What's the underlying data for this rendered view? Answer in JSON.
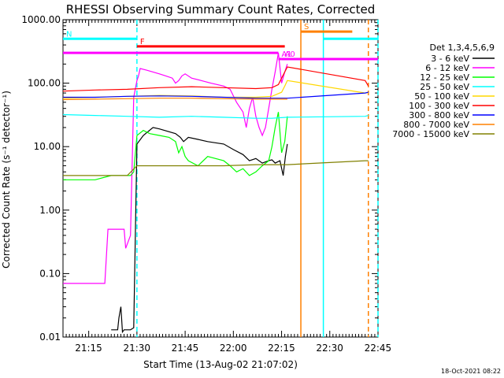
{
  "chart_data": {
    "type": "line",
    "title": "RHESSI Observing Summary Count Rates, Corrected",
    "xlabel": "Start Time (13-Aug-02 21:07:02)",
    "ylabel": "Corrected Count Rate (s⁻¹ detector⁻¹)",
    "y_scale": "log",
    "ylim": [
      0.01,
      1000
    ],
    "y_ticks": [
      0.01,
      0.1,
      1,
      10,
      100,
      1000
    ],
    "y_tick_labels": [
      "0.01",
      "0.10",
      "1.00",
      "10.00",
      "100.00",
      "1000.00"
    ],
    "x_unit": "minutes since 21:07:02",
    "xlim": [
      0,
      98
    ],
    "x_ticks": [
      7.97,
      22.97,
      37.97,
      52.97,
      67.97,
      82.97,
      97.97
    ],
    "x_tick_labels": [
      "21:15",
      "21:30",
      "21:45",
      "22:00",
      "22:15",
      "22:30",
      "22:45"
    ],
    "legend_title": "Det 1,3,4,5,6,9",
    "legend_position": "right",
    "series": [
      {
        "name": "3 - 6 keV",
        "color": "#000000",
        "x": [
          15,
          17,
          17.4,
          18,
          18.5,
          19,
          20,
          21,
          22,
          23,
          25,
          28,
          30,
          35,
          36.5,
          37.5,
          39,
          42,
          45,
          50,
          53,
          56,
          58,
          60,
          62,
          64,
          65,
          66,
          67.5,
          68.5,
          69.2,
          69.8
        ],
        "y": [
          0.013,
          0.013,
          0.02,
          0.03,
          0.012,
          0.013,
          0.013,
          0.013,
          0.014,
          11,
          15,
          20,
          19,
          16,
          14,
          12,
          14,
          13,
          12,
          11,
          9,
          7.5,
          6,
          6.5,
          5.5,
          6,
          6.2,
          5.5,
          6,
          3.5,
          7,
          11
        ]
      },
      {
        "name": "6 - 12 keV",
        "color": "#ff00ff",
        "x": [
          0,
          5,
          10,
          12,
          13,
          14,
          14.5,
          15,
          17,
          19,
          19.5,
          21,
          22,
          23,
          23.5,
          24,
          26,
          28,
          30,
          32,
          34,
          35,
          36,
          37,
          38,
          40,
          43,
          46,
          50,
          52,
          54,
          56,
          57,
          58,
          59,
          60,
          61,
          62,
          63,
          64,
          65,
          66,
          67,
          68,
          69,
          69.8
        ],
        "y": [
          0.07,
          0.07,
          0.07,
          0.07,
          0.07,
          0.5,
          0.5,
          0.5,
          0.5,
          0.5,
          0.25,
          0.4,
          60,
          110,
          130,
          170,
          160,
          150,
          140,
          130,
          120,
          100,
          110,
          130,
          140,
          120,
          110,
          100,
          90,
          80,
          50,
          35,
          20,
          40,
          60,
          30,
          20,
          15,
          20,
          40,
          80,
          150,
          300,
          100,
          150,
          200
        ]
      },
      {
        "name": "12 - 25 keV",
        "color": "#00ff00",
        "x": [
          0,
          5,
          10,
          15,
          20,
          21,
          22,
          23,
          25,
          27,
          30,
          33,
          35,
          36,
          37,
          38,
          39,
          42,
          45,
          50,
          52,
          54,
          56,
          58,
          60,
          62,
          64,
          65,
          66,
          67,
          68,
          69,
          69.8
        ],
        "y": [
          3,
          3,
          3,
          3.5,
          3.5,
          3.5,
          4,
          15,
          18,
          16,
          15,
          14,
          12,
          8,
          10,
          7,
          6,
          5,
          7,
          6,
          5,
          4,
          4.5,
          3.5,
          4,
          5,
          6,
          10,
          20,
          35,
          8,
          12,
          30
        ]
      },
      {
        "name": "25 - 50 keV",
        "color": "#00ffff",
        "x": [
          0,
          10,
          20,
          30,
          40,
          50,
          60,
          65,
          69.8,
          94,
          95
        ],
        "y": [
          32,
          31,
          30,
          29,
          30,
          29,
          28,
          28,
          29,
          30,
          31
        ]
      },
      {
        "name": "50 - 100 keV",
        "color": "#ffd700",
        "x": [
          0,
          10,
          20,
          30,
          40,
          50,
          60,
          65,
          68,
          69,
          69.8,
          94,
          95
        ],
        "y": [
          58,
          60,
          62,
          64,
          63,
          60,
          60,
          62,
          72,
          90,
          110,
          70,
          71
        ]
      },
      {
        "name": "100 - 300 keV",
        "color": "#ff0000",
        "x": [
          0,
          10,
          20,
          30,
          40,
          50,
          60,
          65,
          67,
          68,
          69,
          69.8,
          94,
          95
        ],
        "y": [
          75,
          78,
          80,
          85,
          88,
          85,
          82,
          85,
          95,
          120,
          150,
          180,
          110,
          90
        ]
      },
      {
        "name": "300 - 800 keV",
        "color": "#0000ff",
        "x": [
          0,
          10,
          20,
          30,
          40,
          50,
          60,
          65,
          69.8,
          94,
          95
        ],
        "y": [
          60,
          60,
          62,
          63,
          62,
          60,
          58,
          58,
          58,
          70,
          72
        ]
      },
      {
        "name": "800 - 7000 keV",
        "color": "#ff8000",
        "x": [
          0,
          10,
          20,
          30,
          40,
          50,
          60,
          65,
          69.8
        ],
        "y": [
          55,
          56,
          57,
          58,
          58,
          57,
          56,
          56,
          56
        ]
      },
      {
        "name": "7000 - 15000 keV",
        "color": "#808000",
        "x": [
          0,
          10,
          20,
          23,
          30,
          40,
          50,
          60,
          65,
          69.8,
          94,
          95
        ],
        "y": [
          3.5,
          3.5,
          3.5,
          5,
          5,
          5,
          5,
          5.2,
          5.2,
          5.2,
          6,
          6
        ]
      }
    ],
    "annotations": [
      {
        "label": "N",
        "color": "#00ffff",
        "x_start": 0,
        "x_end": 23,
        "y": 500
      },
      {
        "label": "F",
        "color": "#ff0000",
        "x_start": 23,
        "x_end": 69,
        "y": 380
      },
      {
        "label": "",
        "color": "#ff00ff",
        "x_start": 0,
        "x_end": 67,
        "y": 300
      },
      {
        "label": "A1",
        "color": "#ff00ff",
        "x_start": 67,
        "x_end": 68,
        "y": 240
      },
      {
        "label": "A0",
        "color": "#ff00ff",
        "x_start": 68,
        "x_end": 98,
        "y": 240
      },
      {
        "label": "S",
        "color": "#ff8000",
        "x_start": 74,
        "x_end": 90,
        "y": 650
      },
      {
        "label": "",
        "color": "#00ffff",
        "x_start": 81,
        "x_end": 98,
        "y": 500
      }
    ],
    "vertical_markers": [
      {
        "x": 23,
        "color": "#00ffff",
        "style": "dashed"
      },
      {
        "x": 74,
        "color": "#ff8000",
        "style": "solid"
      },
      {
        "x": 81,
        "color": "#00ffff",
        "style": "solid"
      },
      {
        "x": 95,
        "color": "#ff8000",
        "style": "dashed"
      },
      {
        "x": 98,
        "color": "#00ffff",
        "style": "dashed"
      }
    ]
  },
  "footer": {
    "timestamp": "18-Oct-2021 08:22"
  }
}
